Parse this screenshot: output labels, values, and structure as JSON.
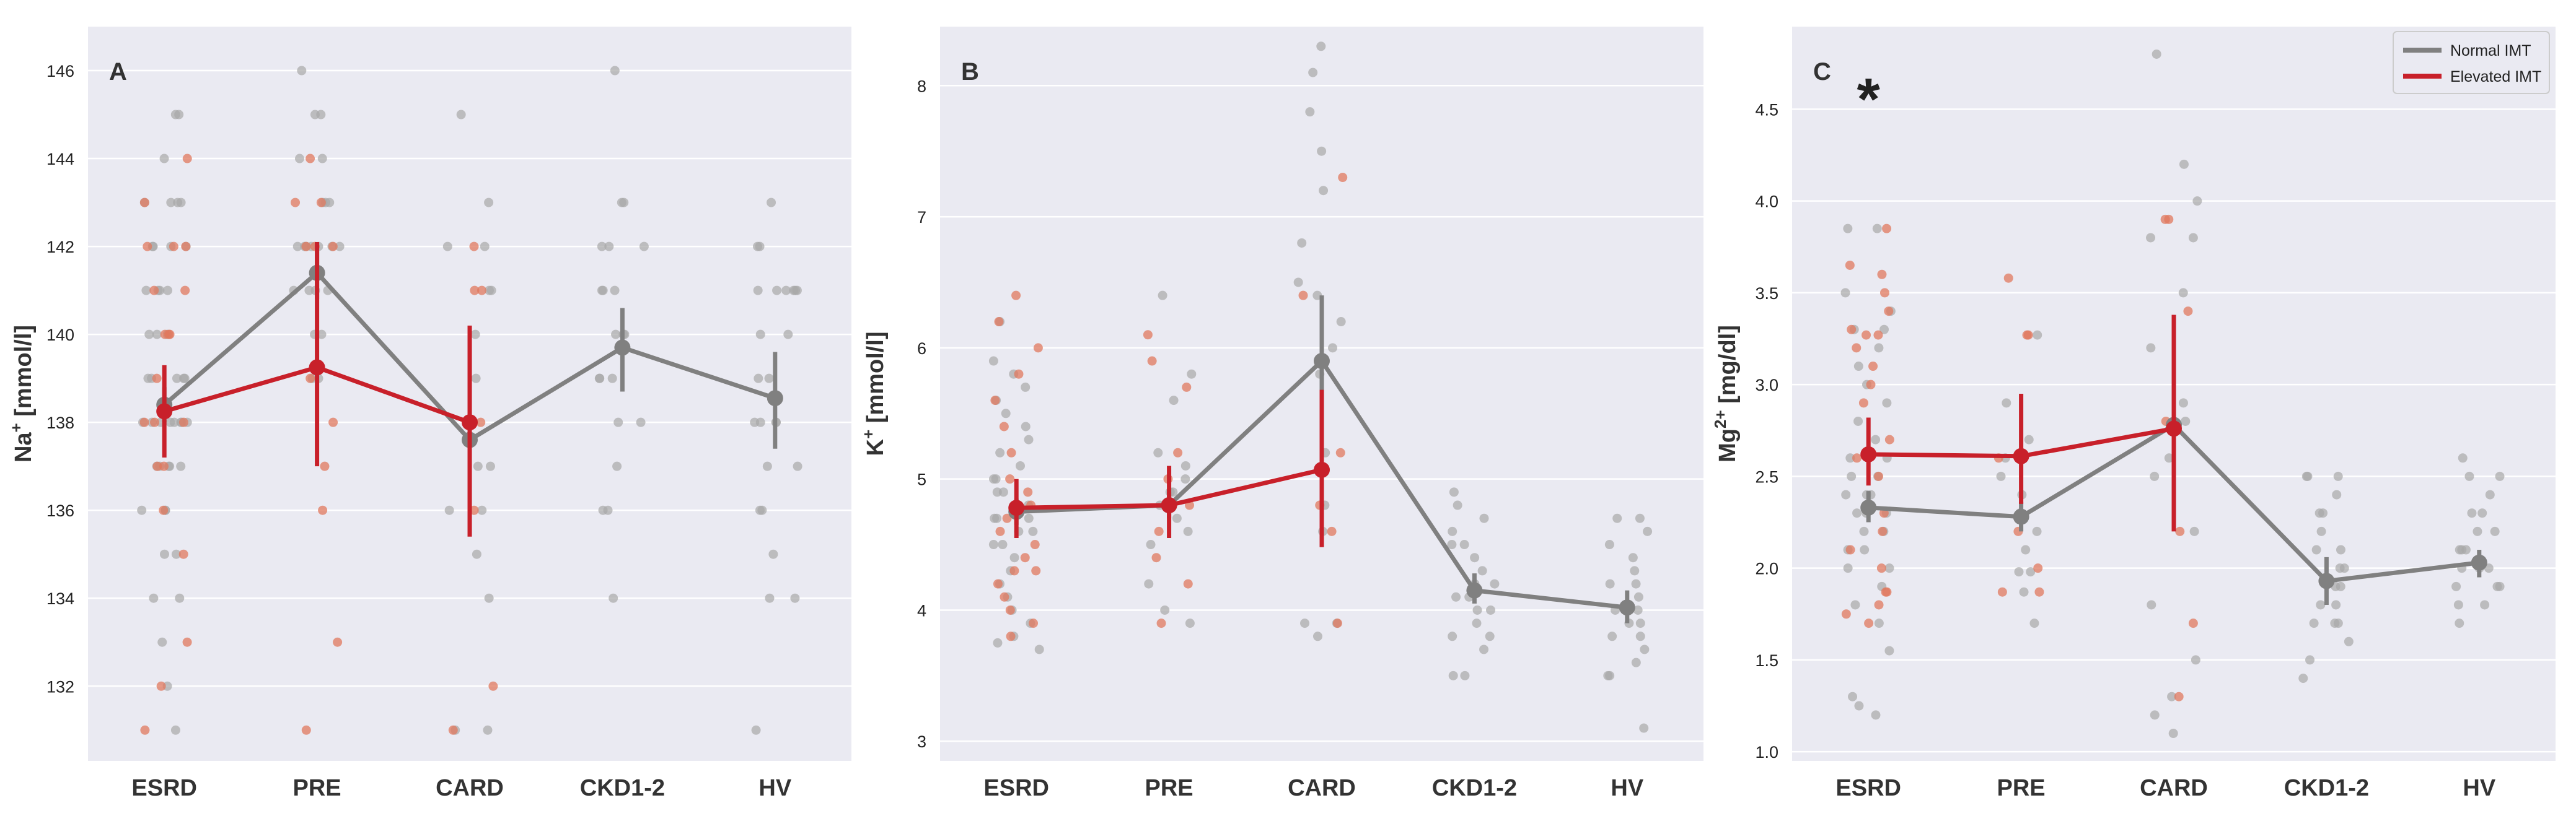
{
  "colors": {
    "panel_bg": "#eaeaf2",
    "grid": "#ffffff",
    "normal": "#808080",
    "elevated": "#c8202a",
    "normal_point": "#a8a8a8",
    "elevated_point": "#e0785e",
    "text": "#333333"
  },
  "legend": {
    "entries": [
      {
        "label": "Normal IMT",
        "color": "#808080"
      },
      {
        "label": "Elevated IMT",
        "color": "#c8202a"
      }
    ],
    "placement": "top-right"
  },
  "chart_data": [
    {
      "type": "strip+pointplot",
      "panel_label": "A",
      "ylabel_base": "Na",
      "ylabel_sup": "+",
      "ylabel_unit": " [mmol/l]",
      "categories": [
        "ESRD",
        "PRE",
        "CARD",
        "CKD1-2",
        "HV"
      ],
      "ylim": [
        130.3,
        147.0
      ],
      "yticks": [
        132,
        134,
        136,
        138,
        140,
        142,
        144,
        146
      ],
      "annotation": "",
      "annotation_category": null,
      "series": [
        {
          "name": "Normal IMT",
          "means": [
            138.4,
            141.4,
            137.6,
            139.7,
            138.55
          ],
          "ci_low": [
            138.0,
            140.8,
            137.3,
            138.7,
            137.4
          ],
          "ci_high": [
            138.8,
            141.9,
            138.0,
            140.6,
            139.6
          ]
        },
        {
          "name": "Elevated IMT",
          "means": [
            138.25,
            139.25,
            138.0,
            null,
            null
          ],
          "ci_low": [
            137.2,
            137.0,
            135.4,
            null,
            null
          ],
          "ci_high": [
            139.3,
            142.1,
            140.2,
            null,
            null
          ]
        }
      ],
      "strip_points": [
        {
          "category": 0,
          "group": "Normal IMT",
          "values": [
            131,
            132,
            133,
            134,
            134,
            135,
            135,
            136,
            136,
            136,
            137,
            137,
            137,
            137,
            137,
            138,
            138,
            138,
            138,
            138,
            138,
            138,
            138,
            139,
            139,
            139,
            139,
            139,
            140,
            140,
            140,
            141,
            141,
            141,
            141,
            142,
            142,
            142,
            142,
            143,
            143,
            143,
            143,
            144,
            145,
            145
          ]
        },
        {
          "category": 0,
          "group": "Elevated IMT",
          "values": [
            131,
            132,
            133,
            135,
            136,
            137,
            137,
            138,
            138,
            138,
            139,
            140,
            140,
            140,
            141,
            141,
            142,
            142,
            142,
            143,
            144
          ]
        },
        {
          "category": 1,
          "group": "Normal IMT",
          "values": [
            139,
            139,
            140,
            140,
            141,
            141,
            141,
            141,
            142,
            142,
            142,
            142,
            142,
            142,
            142,
            143,
            143,
            143,
            144,
            144,
            145,
            145,
            146
          ]
        },
        {
          "category": 1,
          "group": "Elevated IMT",
          "values": [
            131,
            133,
            136,
            137,
            138,
            139,
            142,
            142,
            142,
            143,
            143,
            144
          ]
        },
        {
          "category": 2,
          "group": "Normal IMT",
          "values": [
            131,
            131,
            134,
            135,
            136,
            136,
            137,
            137,
            138,
            138,
            139,
            140,
            141,
            141,
            142,
            142,
            143,
            145
          ]
        },
        {
          "category": 2,
          "group": "Elevated IMT",
          "values": [
            131,
            132,
            136,
            138,
            141,
            141,
            142
          ]
        },
        {
          "category": 3,
          "group": "Normal IMT",
          "values": [
            134,
            136,
            136,
            137,
            138,
            138,
            139,
            139,
            139,
            140,
            140,
            140,
            141,
            141,
            141,
            142,
            142,
            142,
            143,
            143,
            146
          ]
        },
        {
          "category": 4,
          "group": "Normal IMT",
          "values": [
            131,
            134,
            134,
            135,
            136,
            136,
            137,
            137,
            138,
            138,
            138,
            138,
            139,
            139,
            140,
            140,
            141,
            141,
            141,
            141,
            141,
            141,
            142,
            142,
            143
          ]
        }
      ]
    },
    {
      "type": "strip+pointplot",
      "panel_label": "B",
      "ylabel_base": "K",
      "ylabel_sup": "+",
      "ylabel_unit": " [mmol/l]",
      "categories": [
        "ESRD",
        "PRE",
        "CARD",
        "CKD1-2",
        "HV"
      ],
      "ylim": [
        2.85,
        8.45
      ],
      "yticks": [
        3,
        4,
        5,
        6,
        7,
        8
      ],
      "annotation": "",
      "annotation_category": null,
      "series": [
        {
          "name": "Normal IMT",
          "means": [
            4.75,
            4.8,
            5.9,
            4.15,
            4.02
          ],
          "ci_low": [
            4.65,
            4.7,
            5.4,
            4.05,
            3.9
          ],
          "ci_high": [
            4.85,
            4.9,
            6.4,
            4.28,
            4.15
          ]
        },
        {
          "name": "Elevated IMT",
          "means": [
            4.78,
            4.8,
            5.07,
            null,
            null
          ],
          "ci_low": [
            4.55,
            4.55,
            4.48,
            null,
            null
          ],
          "ci_high": [
            5.0,
            5.1,
            5.68,
            null,
            null
          ]
        }
      ],
      "strip_points": [
        {
          "category": 0,
          "group": "Normal IMT",
          "values": [
            3.7,
            3.75,
            3.8,
            3.9,
            4.0,
            4.1,
            4.2,
            4.3,
            4.4,
            4.5,
            4.5,
            4.6,
            4.6,
            4.7,
            4.7,
            4.7,
            4.8,
            4.8,
            4.9,
            4.9,
            5.0,
            5.0,
            5.1,
            5.2,
            5.3,
            5.4,
            5.5,
            5.6,
            5.7,
            5.8,
            5.9,
            6.2
          ]
        },
        {
          "category": 0,
          "group": "Elevated IMT",
          "values": [
            3.8,
            3.9,
            4.0,
            4.1,
            4.2,
            4.3,
            4.3,
            4.4,
            4.5,
            4.6,
            4.7,
            4.8,
            4.9,
            5.0,
            5.2,
            5.4,
            5.6,
            5.8,
            6.0,
            6.2,
            6.4
          ]
        },
        {
          "category": 1,
          "group": "Normal IMT",
          "values": [
            3.9,
            4.0,
            4.2,
            4.5,
            4.6,
            4.7,
            4.8,
            4.8,
            4.9,
            4.9,
            5.0,
            5.1,
            5.2,
            5.6,
            5.8,
            6.4
          ]
        },
        {
          "category": 1,
          "group": "Elevated IMT",
          "values": [
            3.9,
            4.2,
            4.4,
            4.6,
            4.8,
            5.0,
            5.2,
            5.7,
            5.9,
            6.1
          ]
        },
        {
          "category": 2,
          "group": "Normal IMT",
          "values": [
            3.8,
            3.9,
            3.9,
            4.6,
            4.8,
            5.2,
            5.8,
            6.0,
            6.2,
            6.4,
            6.5,
            6.8,
            7.2,
            7.5,
            7.8,
            8.1,
            8.3
          ]
        },
        {
          "category": 2,
          "group": "Elevated IMT",
          "values": [
            3.9,
            4.6,
            4.8,
            5.2,
            6.4,
            7.3
          ]
        },
        {
          "category": 3,
          "group": "Normal IMT",
          "values": [
            3.5,
            3.5,
            3.7,
            3.8,
            3.8,
            3.9,
            4.0,
            4.0,
            4.1,
            4.1,
            4.2,
            4.2,
            4.3,
            4.4,
            4.5,
            4.5,
            4.6,
            4.7,
            4.8,
            4.9
          ]
        },
        {
          "category": 4,
          "group": "Normal IMT",
          "values": [
            3.1,
            3.5,
            3.5,
            3.6,
            3.7,
            3.8,
            3.8,
            3.9,
            3.9,
            4.0,
            4.0,
            4.1,
            4.2,
            4.2,
            4.3,
            4.4,
            4.5,
            4.6,
            4.7,
            4.7
          ]
        }
      ]
    },
    {
      "type": "strip+pointplot",
      "panel_label": "C",
      "ylabel_base": "Mg",
      "ylabel_sup": "2+",
      "ylabel_unit": " [mg/dl]",
      "categories": [
        "ESRD",
        "PRE",
        "CARD",
        "CKD1-2",
        "HV"
      ],
      "ylim": [
        0.95,
        4.95
      ],
      "yticks": [
        1.0,
        1.5,
        2.0,
        2.5,
        3.0,
        3.5,
        4.0,
        4.5
      ],
      "annotation": "*",
      "annotation_category": 0,
      "series": [
        {
          "name": "Normal IMT",
          "means": [
            2.33,
            2.28,
            2.78,
            1.93,
            2.03
          ],
          "ci_low": [
            2.25,
            2.2,
            2.7,
            1.8,
            1.95
          ],
          "ci_high": [
            2.42,
            2.36,
            2.9,
            2.06,
            2.1
          ]
        },
        {
          "name": "Elevated IMT",
          "means": [
            2.62,
            2.61,
            2.76,
            null,
            null
          ],
          "ci_low": [
            2.45,
            2.35,
            2.2,
            null,
            null
          ],
          "ci_high": [
            2.82,
            2.95,
            3.38,
            null,
            null
          ]
        }
      ],
      "strip_points": [
        {
          "category": 0,
          "group": "Normal IMT",
          "values": [
            1.2,
            1.25,
            1.3,
            1.55,
            1.7,
            1.8,
            1.9,
            2.0,
            2.0,
            2.1,
            2.1,
            2.2,
            2.2,
            2.3,
            2.3,
            2.3,
            2.4,
            2.4,
            2.4,
            2.5,
            2.5,
            2.6,
            2.6,
            2.7,
            2.8,
            2.9,
            3.0,
            3.1,
            3.2,
            3.3,
            3.3,
            3.4,
            3.5,
            3.85,
            3.85
          ]
        },
        {
          "category": 0,
          "group": "Elevated IMT",
          "values": [
            1.7,
            1.75,
            1.8,
            1.87,
            1.87,
            2.0,
            2.1,
            2.2,
            2.3,
            2.5,
            2.6,
            2.7,
            2.9,
            3.0,
            3.1,
            3.2,
            3.27,
            3.27,
            3.3,
            3.4,
            3.5,
            3.6,
            3.65,
            3.85
          ]
        },
        {
          "category": 1,
          "group": "Normal IMT",
          "values": [
            1.7,
            1.87,
            1.98,
            1.98,
            2.1,
            2.2,
            2.3,
            2.4,
            2.5,
            2.6,
            2.7,
            2.9,
            3.27
          ]
        },
        {
          "category": 1,
          "group": "Elevated IMT",
          "values": [
            1.87,
            1.87,
            2.0,
            2.2,
            2.6,
            3.27,
            3.27,
            3.58
          ]
        },
        {
          "category": 2,
          "group": "Normal IMT",
          "values": [
            1.1,
            1.2,
            1.3,
            1.5,
            1.8,
            2.2,
            2.5,
            2.6,
            2.8,
            2.9,
            3.2,
            3.5,
            3.8,
            3.8,
            4.0,
            4.2,
            4.8
          ]
        },
        {
          "category": 2,
          "group": "Elevated IMT",
          "values": [
            1.3,
            1.7,
            2.2,
            2.8,
            3.4,
            3.9,
            3.9
          ]
        },
        {
          "category": 3,
          "group": "Normal IMT",
          "values": [
            1.4,
            1.5,
            1.6,
            1.7,
            1.7,
            1.7,
            1.8,
            1.8,
            1.9,
            1.9,
            2.0,
            2.0,
            2.1,
            2.1,
            2.2,
            2.3,
            2.3,
            2.4,
            2.5,
            2.5,
            2.5
          ]
        },
        {
          "category": 4,
          "group": "Normal IMT",
          "values": [
            1.7,
            1.8,
            1.8,
            1.9,
            1.9,
            1.9,
            2.0,
            2.0,
            2.0,
            2.1,
            2.1,
            2.1,
            2.2,
            2.2,
            2.3,
            2.3,
            2.4,
            2.5,
            2.5,
            2.6
          ]
        }
      ]
    }
  ]
}
